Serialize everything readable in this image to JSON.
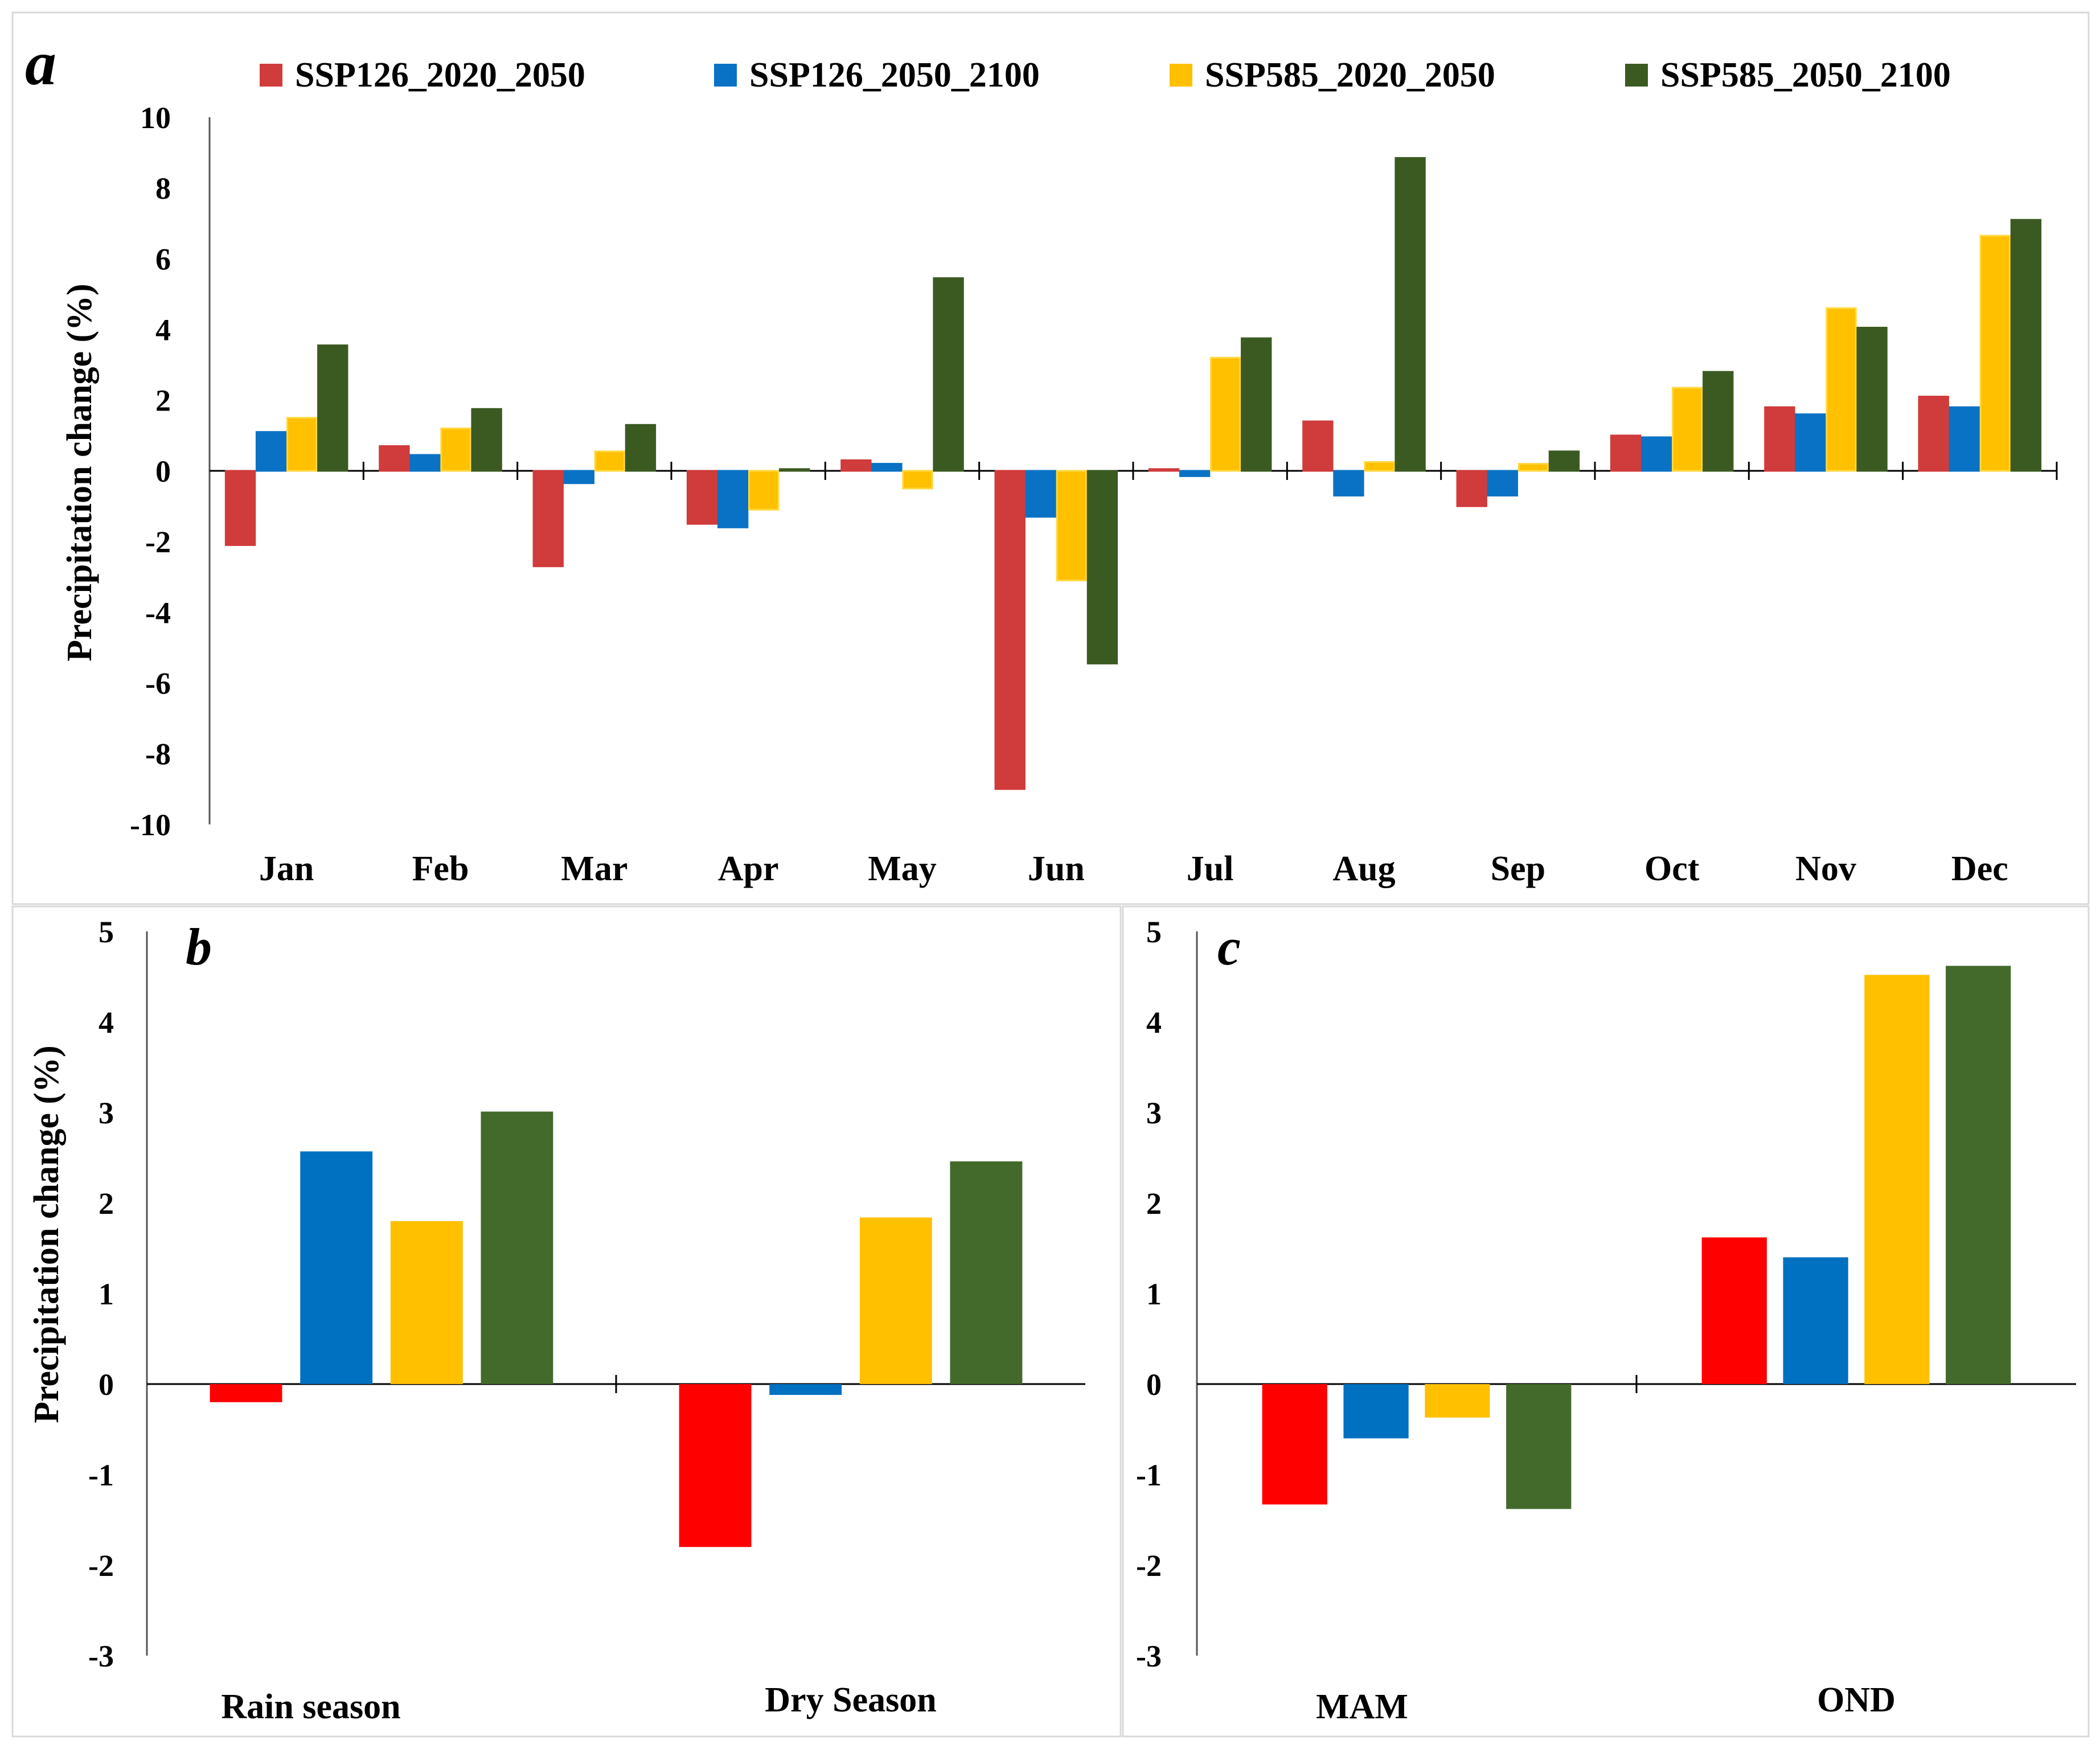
{
  "colors": {
    "ssp126_2020_2050_a": "#d03b3b",
    "ssp126_2050_2100_a": "#0a72c5",
    "ssp585_2020_2050_a": "#ffc000",
    "ssp585_2050_2100_a": "#3b5a22",
    "ssp126_2020_2050_bc": "#ff0000",
    "ssp126_2050_2100_bc": "#0070c0",
    "ssp585_2020_2050_bc": "#ffc000",
    "ssp585_2050_2100_bc": "#436a2b"
  },
  "chart_data": [
    {
      "panel_label": "a",
      "type": "bar",
      "ylabel": "Precipitation change (%)",
      "ylim": [
        -10,
        10
      ],
      "yticks": [
        "10",
        "8",
        "6",
        "4",
        "2",
        "0",
        "-2",
        "-4",
        "-6",
        "-8",
        "-10"
      ],
      "ytick_values": [
        10,
        8,
        6,
        4,
        2,
        0,
        -2,
        -4,
        -6,
        -8,
        -10
      ],
      "categories": [
        "Jan",
        "Feb",
        "Mar",
        "Apr",
        "May",
        "Jun",
        "Jul",
        "Aug",
        "Sep",
        "Oct",
        "Nov",
        "Dec"
      ],
      "legend": [
        "SSP126_2020_2050",
        "SSP126_2050_2100",
        "SSP585_2020_2050",
        "SSP585_2050_2100"
      ],
      "series": [
        {
          "name": "SSP126_2020_2050",
          "values": [
            -2.1,
            0.7,
            -2.7,
            -1.5,
            0.3,
            -9.0,
            0.05,
            1.4,
            -1.0,
            1.0,
            1.8,
            2.1
          ]
        },
        {
          "name": "SSP126_2050_2100",
          "values": [
            1.1,
            0.45,
            -0.35,
            -1.6,
            0.2,
            -1.3,
            -0.15,
            -0.7,
            -0.7,
            0.95,
            1.6,
            1.8
          ]
        },
        {
          "name": "SSP585_2020_2050",
          "values": [
            1.5,
            1.2,
            0.55,
            -1.1,
            -0.5,
            -3.1,
            3.2,
            0.25,
            0.2,
            2.35,
            4.6,
            6.65
          ]
        },
        {
          "name": "SSP585_2050_2100",
          "values": [
            3.55,
            1.75,
            1.3,
            0.05,
            5.45,
            -5.45,
            3.75,
            8.85,
            0.55,
            2.8,
            4.05,
            7.1
          ]
        }
      ]
    },
    {
      "panel_label": "b",
      "type": "bar",
      "ylabel": "Precipitation change (%)",
      "ylim": [
        -3,
        5
      ],
      "yticks": [
        "5",
        "4",
        "3",
        "2",
        "1",
        "0",
        "-1",
        "-2",
        "-3"
      ],
      "ytick_values": [
        5,
        4,
        3,
        2,
        1,
        0,
        -1,
        -2,
        -3
      ],
      "categories": [
        "Rain season",
        "Dry Season"
      ],
      "series": [
        {
          "name": "SSP126_2020_2050",
          "values": [
            -0.2,
            -1.8
          ]
        },
        {
          "name": "SSP126_2050_2100",
          "values": [
            2.57,
            -0.12
          ]
        },
        {
          "name": "SSP585_2020_2050",
          "values": [
            1.8,
            1.84
          ]
        },
        {
          "name": "SSP585_2050_2100",
          "values": [
            3.01,
            2.46
          ]
        }
      ]
    },
    {
      "panel_label": "c",
      "type": "bar",
      "ylabel": "",
      "ylim": [
        -3,
        5
      ],
      "yticks": [
        "5",
        "4",
        "3",
        "2",
        "1",
        "0",
        "-1",
        "-2",
        "-3"
      ],
      "ytick_values": [
        5,
        4,
        3,
        2,
        1,
        0,
        -1,
        -2,
        -3
      ],
      "categories": [
        "MAM",
        "OND"
      ],
      "series": [
        {
          "name": "SSP126_2020_2050",
          "values": [
            -1.33,
            1.62
          ]
        },
        {
          "name": "SSP126_2050_2100",
          "values": [
            -0.6,
            1.4
          ]
        },
        {
          "name": "SSP585_2020_2050",
          "values": [
            -0.37,
            4.52
          ]
        },
        {
          "name": "SSP585_2050_2100",
          "values": [
            -1.38,
            4.62
          ]
        }
      ]
    }
  ]
}
